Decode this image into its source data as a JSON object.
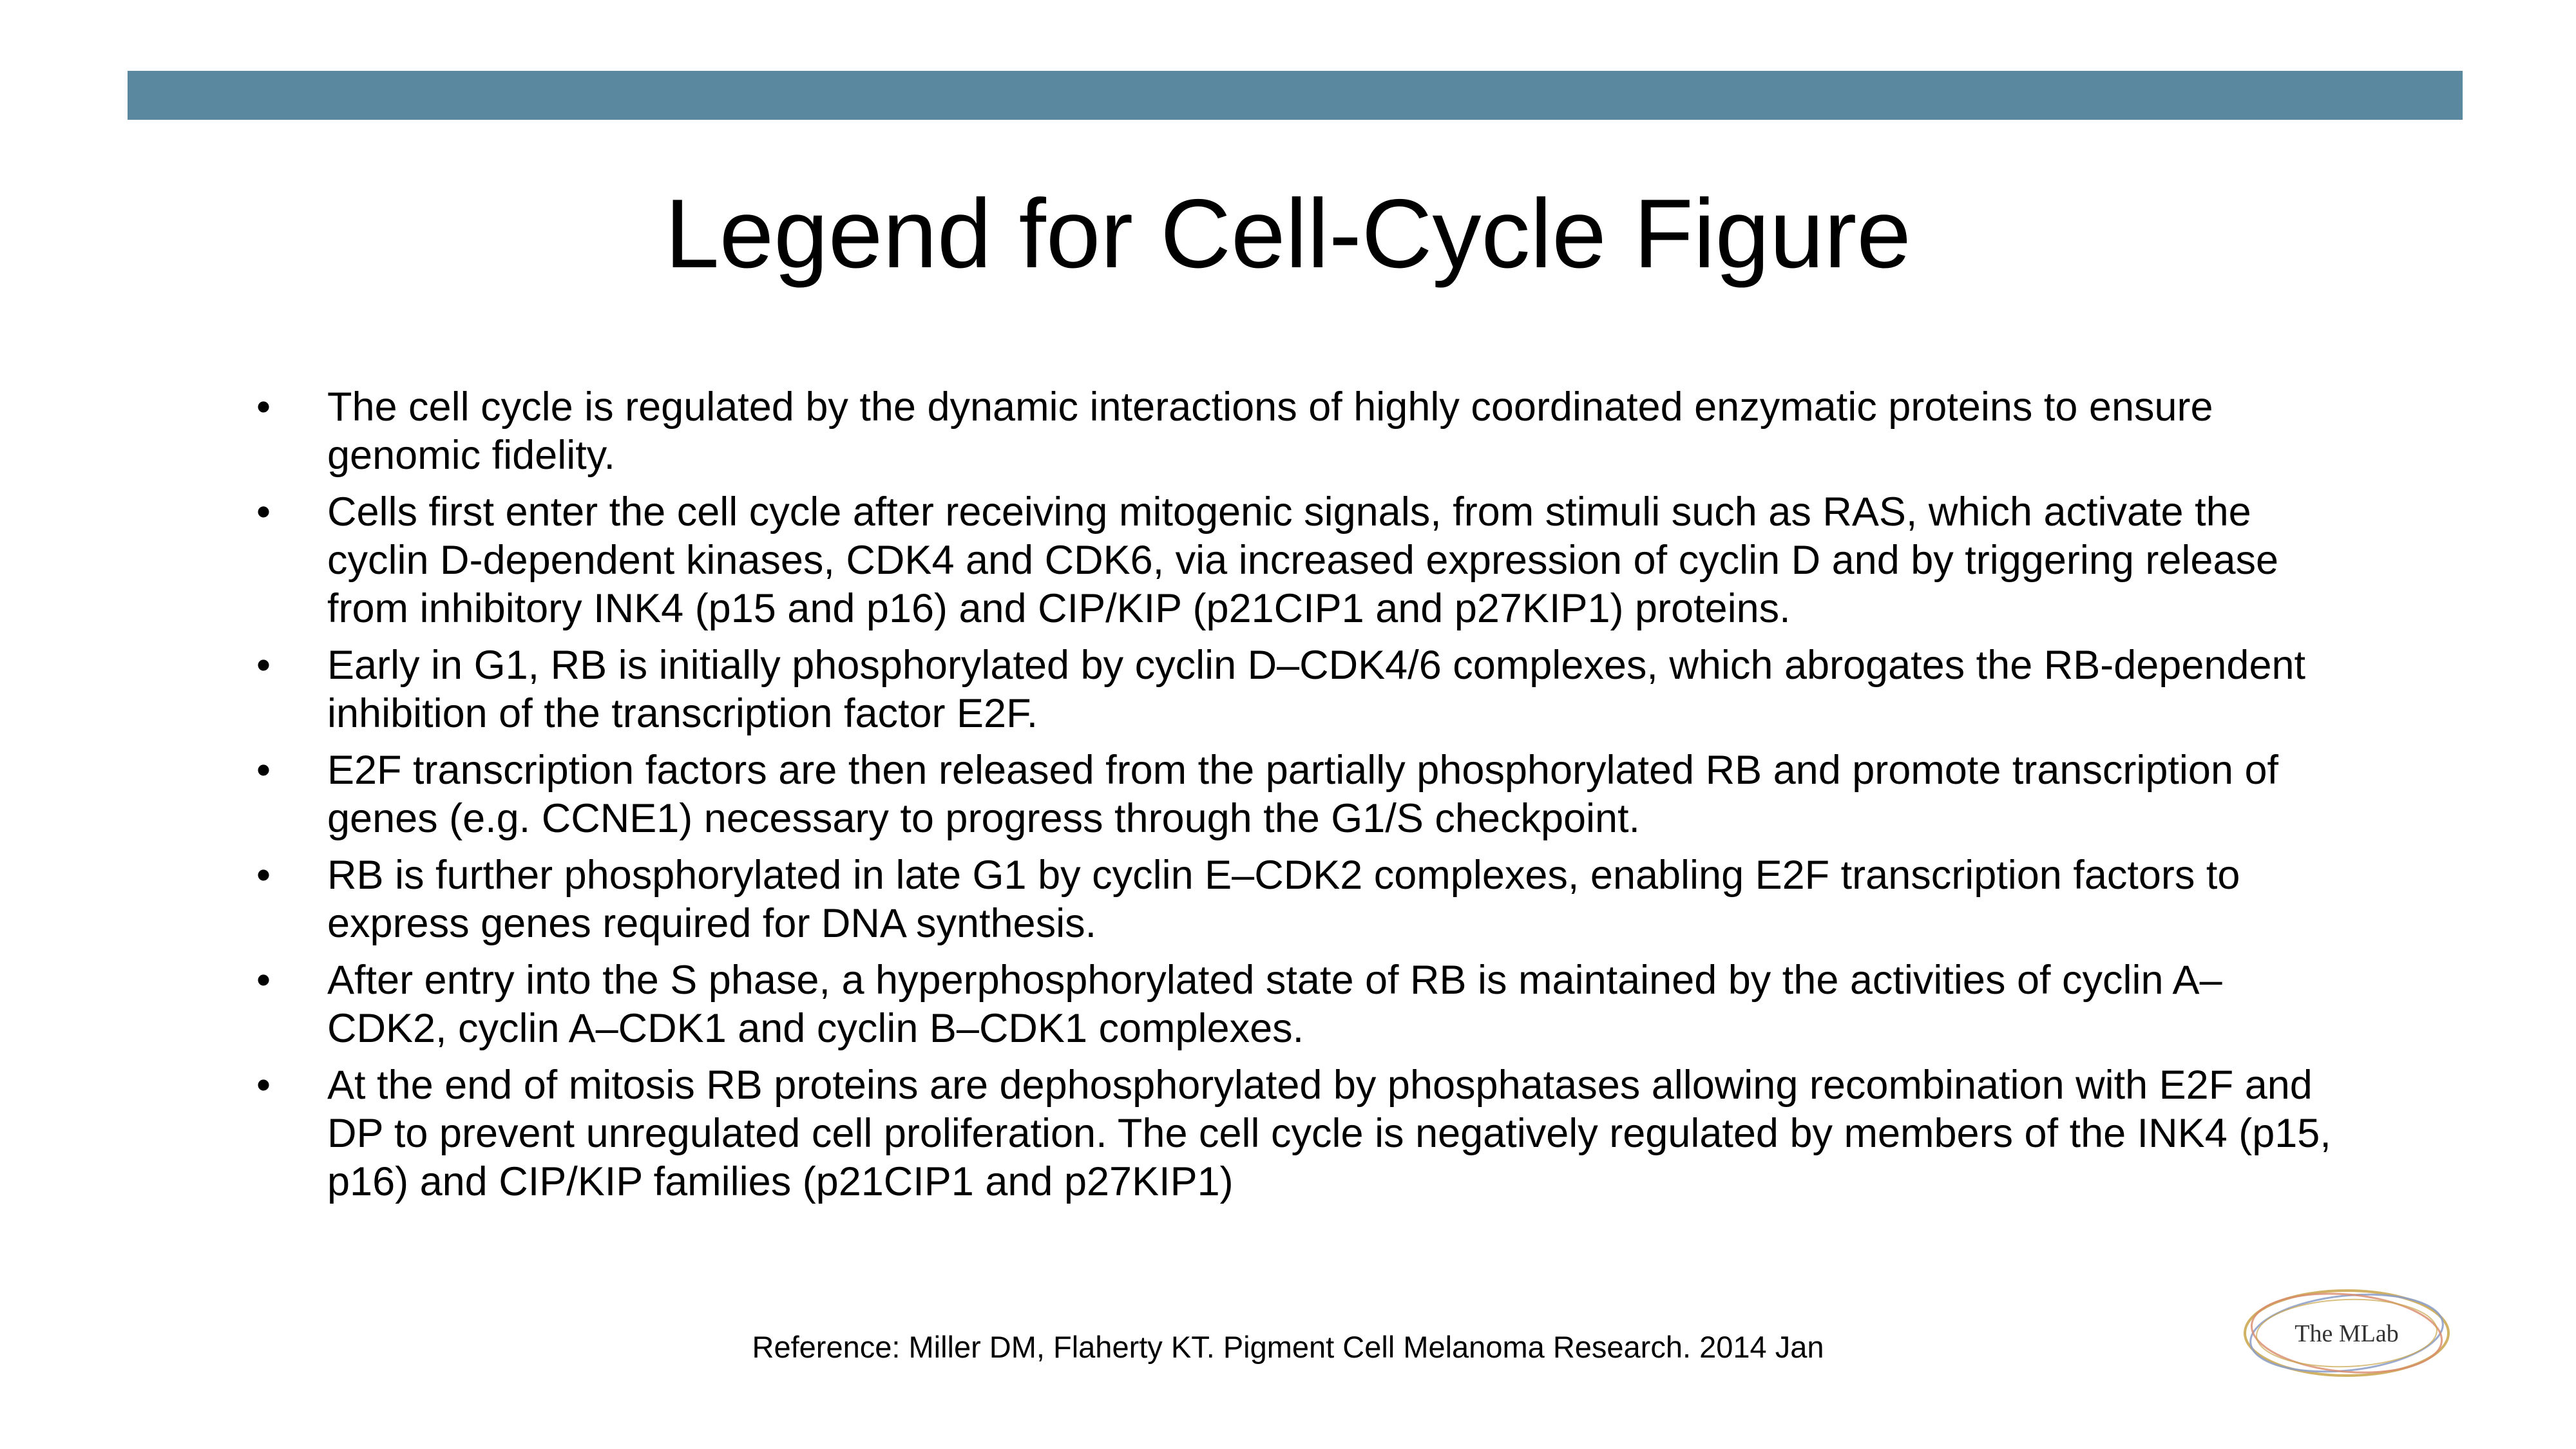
{
  "slide": {
    "title": "Legend for Cell-Cycle Figure",
    "bullet_char": "•",
    "bullets": [
      "The cell cycle is regulated by the dynamic interactions of highly coordinated enzymatic proteins to ensure genomic fidelity.",
      "Cells first enter the cell cycle after receiving mitogenic signals, from stimuli such as RAS, which activate the cyclin D-dependent kinases, CDK4 and CDK6, via increased expression of cyclin D and by triggering release from inhibitory INK4 (p15 and p16) and CIP/KIP (p21CIP1 and p27KIP1) proteins.",
      "Early in G1, RB is initially phosphorylated by cyclin D–CDK4/6 complexes, which abrogates the RB-dependent inhibition of the transcription factor E2F.",
      "E2F transcription factors are then released from the partially phosphorylated RB and promote transcription of genes (e.g. CCNE1) necessary to progress through the G1/S checkpoint.",
      "RB is further phosphorylated in late G1 by cyclin E–CDK2 complexes, enabling E2F transcription factors to express genes required for DNA synthesis.",
      "After entry into the S phase, a hyperphosphorylated state of RB is maintained by the activities of cyclin A–CDK2, cyclin A–CDK1 and cyclin B–CDK1 complexes.",
      "At the end of mitosis RB proteins are dephosphorylated by phosphatases allowing recombination with E2F and DP to prevent unregulated cell proliferation. The cell cycle is negatively regulated by members of the INK4 (p15, p16) and CIP/KIP families (p21CIP1 and p27KIP1)"
    ],
    "reference": "Reference: Miller DM, Flaherty KT. Pigment Cell Melanoma Research. 2014 Jan"
  },
  "logo": {
    "text": "The MLab",
    "icon": "mlab-logo-icon"
  },
  "colors": {
    "top_bar": "#5a889f",
    "logo_ring_1": "#c9a54a",
    "logo_ring_2": "#8a9cc8",
    "logo_ring_3": "#d98a6a"
  }
}
